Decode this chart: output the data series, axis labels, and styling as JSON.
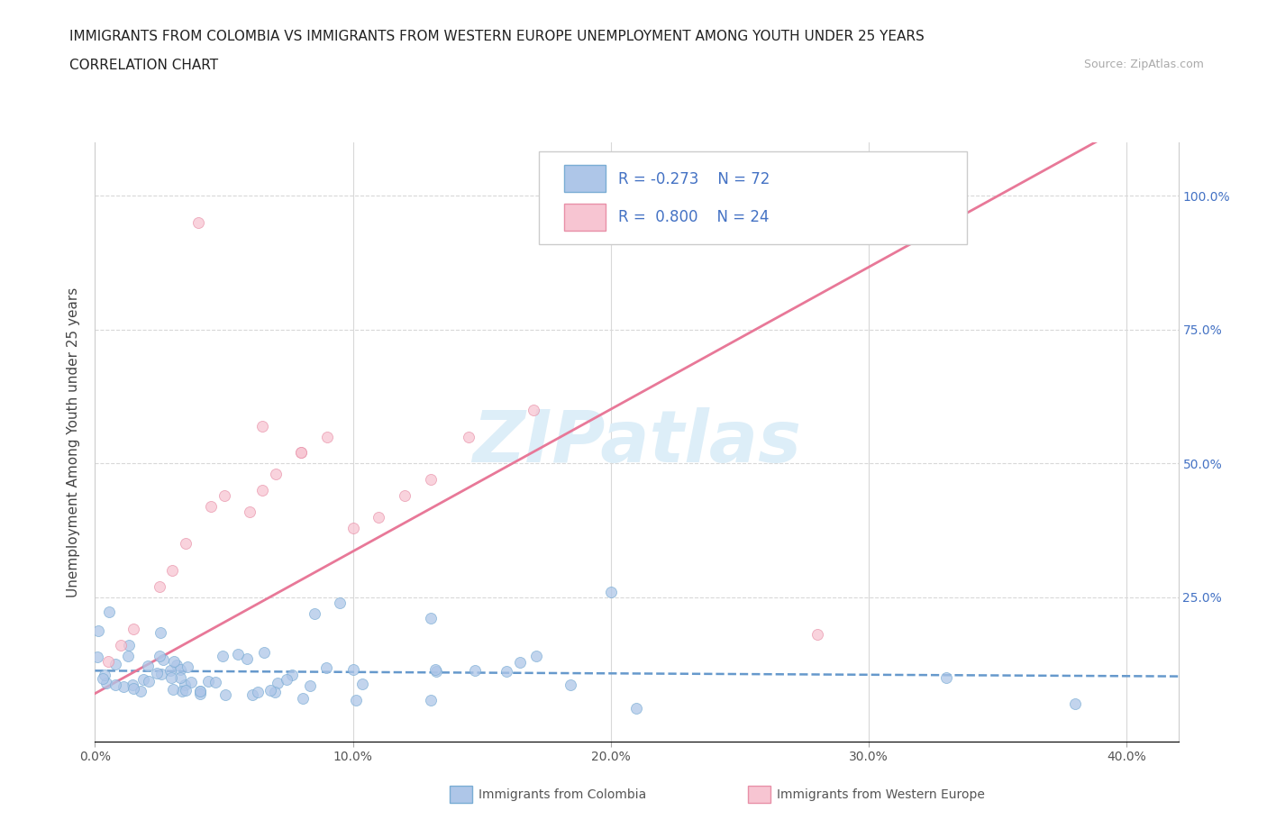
{
  "title_line1": "IMMIGRANTS FROM COLOMBIA VS IMMIGRANTS FROM WESTERN EUROPE UNEMPLOYMENT AMONG YOUTH UNDER 25 YEARS",
  "title_line2": "CORRELATION CHART",
  "source_text": "Source: ZipAtlas.com",
  "ylabel": "Unemployment Among Youth under 25 years",
  "xlim": [
    0.0,
    0.42
  ],
  "ylim": [
    -0.02,
    1.1
  ],
  "ytick_values": [
    0.0,
    0.25,
    0.5,
    0.75,
    1.0
  ],
  "xtick_labels": [
    "0.0%",
    "10.0%",
    "20.0%",
    "30.0%",
    "40.0%"
  ],
  "xtick_values": [
    0.0,
    0.1,
    0.2,
    0.3,
    0.4
  ],
  "right_ytick_labels": [
    "100.0%",
    "75.0%",
    "50.0%",
    "25.0%"
  ],
  "right_ytick_values": [
    1.0,
    0.75,
    0.5,
    0.25
  ],
  "colombia_color": "#aec6e8",
  "colombia_edge_color": "#7aadd4",
  "western_europe_color": "#f7c5d2",
  "western_europe_edge_color": "#e890a8",
  "colombia_line_color": "#6699cc",
  "western_europe_line_color": "#e87898",
  "r_colombia": -0.273,
  "n_colombia": 72,
  "r_we": 0.8,
  "n_we": 24,
  "watermark_color": "#ddeef8",
  "background_color": "#ffffff",
  "grid_color": "#d8d8d8",
  "title_color": "#222222",
  "axis_label_color": "#444444",
  "right_axis_color": "#4472c4",
  "legend_text_color": "#4472c4"
}
